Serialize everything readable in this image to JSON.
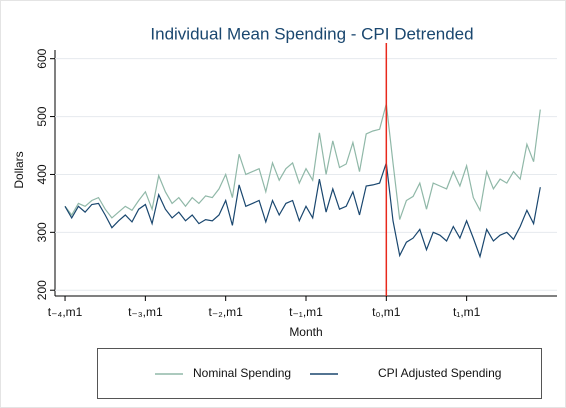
{
  "chart_data": {
    "type": "line",
    "title": "Individual Mean Spending - CPI Detrended",
    "x_label": "Month",
    "y_label": "Dollars",
    "x": [
      -48,
      -47,
      -46,
      -45,
      -44,
      -43,
      -42,
      -41,
      -40,
      -39,
      -38,
      -37,
      -36,
      -35,
      -34,
      -33,
      -32,
      -31,
      -30,
      -29,
      -28,
      -27,
      -26,
      -25,
      -24,
      -23,
      -22,
      -21,
      -20,
      -19,
      -18,
      -17,
      -16,
      -15,
      -14,
      -13,
      -12,
      -11,
      -10,
      -9,
      -8,
      -7,
      -6,
      -5,
      -4,
      -3,
      -2,
      -1,
      0,
      1,
      2,
      3,
      4,
      5,
      6,
      7,
      8,
      9,
      10,
      11,
      12,
      13,
      14,
      15,
      16,
      17,
      18,
      19,
      20,
      21,
      22,
      23
    ],
    "series": [
      {
        "name": "Nominal Spending",
        "color": "#90b8a8",
        "values": [
          345,
          330,
          350,
          345,
          355,
          360,
          340,
          325,
          335,
          345,
          338,
          355,
          370,
          340,
          398,
          370,
          350,
          360,
          345,
          360,
          350,
          363,
          360,
          375,
          400,
          360,
          435,
          400,
          405,
          410,
          370,
          420,
          390,
          410,
          420,
          385,
          410,
          390,
          472,
          400,
          458,
          412,
          418,
          455,
          405,
          470,
          475,
          478,
          522,
          420,
          322,
          355,
          362,
          385,
          340,
          385,
          380,
          375,
          405,
          380,
          415,
          360,
          338,
          405,
          375,
          392,
          385,
          405,
          392,
          452,
          422,
          512
        ]
      },
      {
        "name": "CPI Adjusted Spending",
        "color": "#1a476f",
        "values": [
          345,
          325,
          345,
          335,
          348,
          350,
          330,
          308,
          320,
          330,
          318,
          340,
          348,
          315,
          365,
          340,
          325,
          335,
          320,
          330,
          315,
          322,
          320,
          330,
          355,
          312,
          382,
          345,
          350,
          355,
          318,
          355,
          330,
          350,
          355,
          320,
          345,
          325,
          392,
          335,
          375,
          340,
          345,
          370,
          330,
          380,
          382,
          385,
          420,
          320,
          260,
          283,
          290,
          305,
          270,
          300,
          295,
          285,
          310,
          290,
          320,
          290,
          258,
          305,
          285,
          295,
          300,
          288,
          310,
          338,
          315,
          378
        ]
      }
    ],
    "xlim": [
      -49.5,
      25.5
    ],
    "ylim": [
      190,
      615
    ],
    "xticks": [
      {
        "value": -48,
        "label": "t₋₄,m1"
      },
      {
        "value": -36,
        "label": "t₋₃,m1"
      },
      {
        "value": -24,
        "label": "t₋₂,m1"
      },
      {
        "value": -12,
        "label": "t₋₁,m1"
      },
      {
        "value": 0,
        "label": "t₀,m1"
      },
      {
        "value": 12,
        "label": "t₁,m1"
      }
    ],
    "yticks": [
      200,
      300,
      400,
      500,
      600
    ],
    "grid": true,
    "xline": {
      "value": 0,
      "color": "#e8291c"
    },
    "legend": "bottom"
  }
}
